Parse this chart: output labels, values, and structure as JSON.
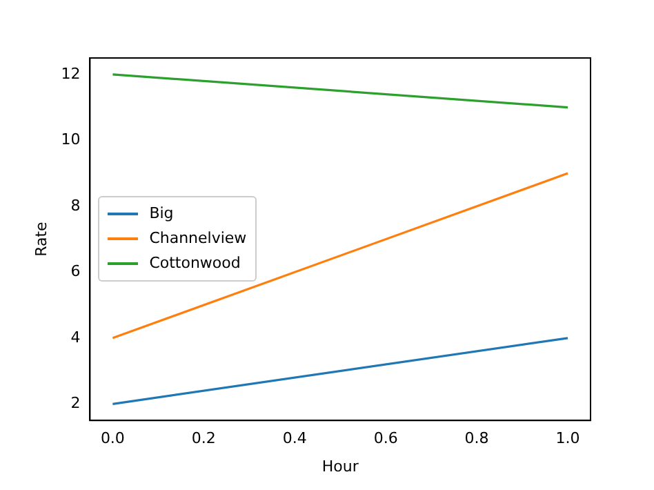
{
  "chart_data": {
    "type": "line",
    "xlabel": "Hour",
    "ylabel": "Rate",
    "x": [
      0,
      1
    ],
    "series": [
      {
        "name": "Big",
        "color": "#1f77b4",
        "values": [
          2,
          4
        ]
      },
      {
        "name": "Channelview",
        "color": "#ff7f0e",
        "values": [
          4,
          9
        ]
      },
      {
        "name": "Cottonwood",
        "color": "#2ca02c",
        "values": [
          12,
          11
        ]
      }
    ],
    "xlim": [
      -0.05,
      1.05
    ],
    "xticks": [
      {
        "value": 0,
        "label": "0.0"
      },
      {
        "value": 0.2,
        "label": "0.2"
      },
      {
        "value": 0.4,
        "label": "0.4"
      },
      {
        "value": 0.6,
        "label": "0.6"
      },
      {
        "value": 0.8,
        "label": "0.8"
      },
      {
        "value": 1,
        "label": "1.0"
      }
    ],
    "ylim": [
      1.5,
      12.5
    ],
    "yticks": [
      2,
      4,
      6,
      8,
      10,
      12
    ],
    "grid": false,
    "legend": "center left",
    "marker": "none",
    "line_style": "solid"
  }
}
